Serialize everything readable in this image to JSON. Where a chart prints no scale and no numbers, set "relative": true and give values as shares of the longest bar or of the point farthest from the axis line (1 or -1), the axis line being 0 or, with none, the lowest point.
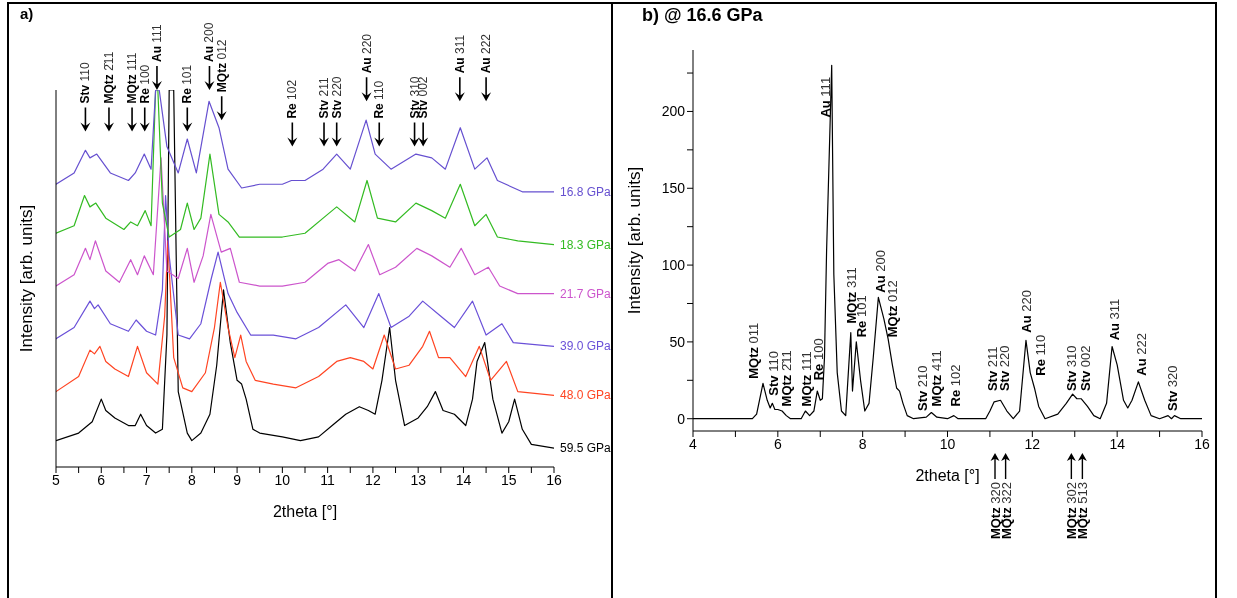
{
  "chart_data": [
    {
      "type": "line",
      "title": "a)",
      "xlabel": "2theta [°]",
      "ylabel": "Intensity [arb. units]",
      "relative": true,
      "xlim": [
        5,
        16
      ],
      "xticks": [
        5,
        {
          "value": 5.5,
          "label": null
        },
        6,
        {
          "value": 6.5,
          "label": null
        },
        7,
        {
          "value": 7.5,
          "label": null
        },
        8,
        {
          "value": 8.5,
          "label": null
        },
        9,
        {
          "value": 9.5,
          "label": null
        },
        10,
        {
          "value": 10.5,
          "label": null
        },
        11,
        {
          "value": 11.5,
          "label": null
        },
        12,
        {
          "value": 12.5,
          "label": null
        },
        13,
        {
          "value": 13.5,
          "label": null
        },
        14,
        {
          "value": 14.5,
          "label": null
        },
        15,
        {
          "value": 15.5,
          "label": null
        },
        16
      ],
      "series": [
        {
          "name": "16.8 GPa",
          "color": "#6650d0",
          "x": [
            5,
            5.4,
            5.65,
            5.75,
            5.9,
            6.2,
            6.6,
            6.75,
            6.95,
            7.1,
            7.2,
            7.28,
            7.45,
            7.7,
            7.9,
            8.1,
            8.38,
            8.6,
            8.8,
            9.1,
            9.5,
            10,
            10.2,
            10.5,
            10.9,
            11.2,
            11.5,
            11.85,
            12.05,
            12.4,
            12.95,
            13.3,
            13.6,
            13.93,
            14.25,
            14.52,
            14.75,
            15.3,
            16
          ],
          "values": [
            0.75,
            0.78,
            0.84,
            0.82,
            0.83,
            0.78,
            0.76,
            0.78,
            0.83,
            0.79,
            1,
            1,
            0.85,
            0.78,
            0.87,
            0.78,
            0.97,
            0.9,
            0.79,
            0.74,
            0.75,
            0.75,
            0.76,
            0.76,
            0.79,
            0.83,
            0.79,
            0.92,
            0.83,
            0.79,
            0.83,
            0.82,
            0.79,
            0.9,
            0.79,
            0.82,
            0.76,
            0.73,
            0.73
          ]
        },
        {
          "name": "18.3 GPa",
          "color": "#33bb22",
          "x": [
            5,
            5.4,
            5.63,
            5.75,
            5.88,
            6.1,
            6.5,
            6.65,
            6.8,
            6.97,
            7.1,
            7.2,
            7.25,
            7.35,
            7.5,
            7.75,
            7.9,
            8.05,
            8.2,
            8.4,
            8.6,
            8.8,
            9.05,
            9.5,
            10,
            10.5,
            11,
            11.2,
            11.6,
            11.87,
            12.1,
            12.5,
            12.95,
            13.3,
            13.6,
            13.93,
            14.25,
            14.5,
            14.75,
            15.2,
            16
          ],
          "values": [
            0.62,
            0.64,
            0.72,
            0.69,
            0.7,
            0.66,
            0.63,
            0.65,
            0.64,
            0.68,
            0.64,
            1,
            1,
            0.7,
            0.61,
            0.63,
            0.7,
            0.63,
            0.66,
            0.83,
            0.67,
            0.65,
            0.61,
            0.61,
            0.61,
            0.62,
            0.67,
            0.69,
            0.65,
            0.76,
            0.66,
            0.65,
            0.7,
            0.68,
            0.66,
            0.75,
            0.64,
            0.67,
            0.61,
            0.6,
            0.59
          ]
        },
        {
          "name": "21.7 GPa",
          "color": "#cc55cc",
          "x": [
            5,
            5.4,
            5.65,
            5.75,
            5.87,
            6.1,
            6.4,
            6.65,
            6.8,
            6.95,
            7.15,
            7.32,
            7.45,
            7.7,
            7.9,
            8.05,
            8.25,
            8.42,
            8.65,
            8.85,
            9.05,
            9.5,
            10,
            10.5,
            11,
            11.25,
            11.6,
            11.9,
            12.15,
            12.5,
            12.97,
            13.3,
            13.7,
            13.95,
            14.25,
            14.55,
            14.8,
            15.2,
            16
          ],
          "values": [
            0.48,
            0.51,
            0.58,
            0.55,
            0.6,
            0.52,
            0.49,
            0.55,
            0.51,
            0.56,
            0.51,
            0.82,
            0.52,
            0.5,
            0.58,
            0.49,
            0.56,
            0.67,
            0.57,
            0.58,
            0.49,
            0.48,
            0.48,
            0.49,
            0.54,
            0.55,
            0.52,
            0.59,
            0.51,
            0.53,
            0.58,
            0.56,
            0.53,
            0.58,
            0.51,
            0.53,
            0.48,
            0.46,
            0.46
          ]
        },
        {
          "name": "39.0 GPa",
          "color": "#6a50d8",
          "x": [
            5,
            5.4,
            5.75,
            5.85,
            5.93,
            6.2,
            6.6,
            6.77,
            7,
            7.2,
            7.35,
            7.42,
            7.5,
            7.7,
            7.95,
            8.2,
            8.43,
            8.58,
            8.8,
            9,
            9.3,
            9.8,
            10.3,
            10.8,
            11.4,
            11.8,
            12.13,
            12.4,
            12.8,
            13.1,
            13.5,
            13.8,
            14.2,
            14.5,
            14.85,
            15.1,
            16
          ],
          "values": [
            0.34,
            0.37,
            0.44,
            0.42,
            0.43,
            0.38,
            0.36,
            0.39,
            0.36,
            0.35,
            0.47,
            0.72,
            0.56,
            0.35,
            0.34,
            0.38,
            0.5,
            0.57,
            0.46,
            0.41,
            0.35,
            0.35,
            0.34,
            0.37,
            0.43,
            0.37,
            0.46,
            0.37,
            0.4,
            0.44,
            0.4,
            0.37,
            0.44,
            0.35,
            0.38,
            0.33,
            0.32
          ]
        },
        {
          "name": "48.0 GPa",
          "color": "#ff4422",
          "x": [
            5,
            5.5,
            5.75,
            5.85,
            5.97,
            6.1,
            6.3,
            6.6,
            6.8,
            7,
            7.25,
            7.4,
            7.47,
            7.6,
            7.8,
            8,
            8.3,
            8.5,
            8.63,
            8.8,
            8.95,
            9.08,
            9.2,
            9.4,
            9.8,
            10.3,
            10.8,
            11.2,
            11.5,
            11.8,
            12,
            12.25,
            12.5,
            12.8,
            13.1,
            13.25,
            13.45,
            13.7,
            14.05,
            14.35,
            14.6,
            14.95,
            15.2,
            16
          ],
          "values": [
            0.2,
            0.24,
            0.31,
            0.3,
            0.32,
            0.28,
            0.26,
            0.24,
            0.32,
            0.25,
            0.22,
            0.4,
            0.6,
            0.29,
            0.21,
            0.2,
            0.25,
            0.37,
            0.49,
            0.37,
            0.29,
            0.35,
            0.28,
            0.23,
            0.22,
            0.21,
            0.24,
            0.28,
            0.29,
            0.28,
            0.26,
            0.35,
            0.26,
            0.27,
            0.32,
            0.36,
            0.29,
            0.29,
            0.24,
            0.32,
            0.23,
            0.28,
            0.2,
            0.19
          ]
        },
        {
          "name": "59.5 GPa",
          "color": "#000000",
          "x": [
            5,
            5.5,
            5.8,
            6,
            6.1,
            6.3,
            6.6,
            6.75,
            6.87,
            7,
            7.2,
            7.35,
            7.45,
            7.5,
            7.6,
            7.7,
            7.9,
            8,
            8.2,
            8.4,
            8.55,
            8.7,
            8.85,
            9,
            9.1,
            9.2,
            9.35,
            9.5,
            10,
            10.4,
            10.8,
            11.1,
            11.4,
            11.7,
            11.9,
            12.05,
            12.2,
            12.37,
            12.5,
            12.7,
            13,
            13.2,
            13.38,
            13.55,
            13.8,
            14.05,
            14.2,
            14.3,
            14.47,
            14.65,
            14.85,
            15,
            15.13,
            15.3,
            15.5,
            16
          ],
          "values": [
            0.07,
            0.09,
            0.12,
            0.18,
            0.15,
            0.13,
            0.11,
            0.11,
            0.14,
            0.11,
            0.09,
            0.1,
            0.35,
            1,
            1,
            0.2,
            0.09,
            0.07,
            0.09,
            0.14,
            0.27,
            0.47,
            0.33,
            0.23,
            0.22,
            0.18,
            0.1,
            0.09,
            0.08,
            0.07,
            0.08,
            0.11,
            0.14,
            0.16,
            0.15,
            0.14,
            0.23,
            0.37,
            0.23,
            0.11,
            0.13,
            0.16,
            0.2,
            0.15,
            0.14,
            0.11,
            0.18,
            0.28,
            0.33,
            0.18,
            0.09,
            0.12,
            0.18,
            0.1,
            0.06,
            0.05
          ]
        }
      ],
      "annotations": [
        "Stv 110",
        "MQtz 2̄11",
        "MQtz 111",
        "Re 100",
        "Au 111",
        "Re 101",
        "Au 200",
        "MQtz 012",
        "Re 102",
        "Stv 211",
        "Stv 220",
        "Au 220",
        "Re 110",
        "Stv 310",
        "Stv 002",
        "Au 311",
        "Au 222"
      ]
    },
    {
      "type": "line",
      "title": "b) @ 16.6 GPa",
      "xlabel": "2theta [°]",
      "ylabel": "Intensity [arb. units]",
      "xlim": [
        4,
        16
      ],
      "ylim": [
        -8,
        240
      ],
      "xticks": [
        4,
        {
          "value": 5,
          "label": null
        },
        6,
        {
          "value": 7,
          "label": null
        },
        8,
        {
          "value": 9,
          "label": null
        },
        10,
        {
          "value": 11,
          "label": null
        },
        12,
        {
          "value": 13,
          "label": null
        },
        14,
        {
          "value": 15,
          "label": null
        },
        16
      ],
      "yticks": [
        0,
        {
          "value": 25,
          "label": null
        },
        50,
        {
          "value": 75,
          "label": null
        },
        100,
        {
          "value": 125,
          "label": null
        },
        150,
        {
          "value": 175,
          "label": null
        },
        200,
        {
          "value": 225,
          "label": null
        }
      ],
      "series": [
        {
          "color": "#000000",
          "x": [
            4,
            5.4,
            5.5,
            5.65,
            5.75,
            5.82,
            5.87,
            5.93,
            6,
            6.1,
            6.2,
            6.3,
            6.55,
            6.65,
            6.75,
            6.85,
            6.93,
            7,
            7.05,
            7.1,
            7.15,
            7.27,
            7.32,
            7.4,
            7.5,
            7.6,
            7.72,
            7.76,
            7.85,
            7.95,
            8.05,
            8.15,
            8.25,
            8.37,
            8.5,
            8.6,
            8.7,
            8.8,
            8.87,
            8.95,
            9.05,
            9.2,
            9.5,
            9.62,
            9.75,
            10,
            10.15,
            10.25,
            10.9,
            11,
            11.1,
            11.25,
            11.4,
            11.55,
            11.7,
            11.85,
            11.95,
            12.05,
            12.15,
            12.3,
            12.6,
            12.8,
            12.95,
            13.05,
            13.15,
            13.3,
            13.45,
            13.6,
            13.75,
            13.88,
            14,
            14.15,
            14.25,
            14.35,
            14.5,
            14.65,
            14.8,
            15,
            15.2,
            15.28,
            15.35,
            15.5,
            16
          ],
          "values": [
            0,
            0,
            3,
            23,
            12,
            7,
            10,
            6,
            6,
            5,
            2,
            0,
            0,
            5,
            2,
            5,
            18,
            12,
            13,
            40,
            110,
            230,
            94,
            30,
            5,
            2,
            56,
            18,
            50,
            25,
            5,
            10,
            40,
            79,
            65,
            52,
            35,
            20,
            18,
            10,
            2,
            0,
            1,
            4,
            1,
            0,
            2,
            0,
            0,
            5,
            11,
            12,
            5,
            0,
            5,
            51,
            30,
            20,
            8,
            0,
            3,
            10,
            16,
            13,
            13,
            8,
            2,
            0,
            10,
            47,
            35,
            12,
            7,
            12,
            24,
            12,
            2,
            0,
            2,
            0,
            2,
            0,
            0
          ]
        }
      ],
      "annotations": [
        "MQtz 011",
        "Stv 110",
        "MQtz 2̄11",
        "MQtz 111",
        "Re 100",
        "Au 111",
        "MQtz 311",
        "Re 101",
        "Au 200",
        "MQtz 012",
        "Stv 210",
        "MQtz 411",
        "Re 102",
        "Stv 211",
        "Stv 220",
        "Au 220",
        "Re 110",
        "Stv 310",
        "Stv 002",
        "Au 311",
        "Au 222",
        "Stv 320",
        "MQtz 320",
        "MQtz 322",
        "MQtz 302",
        "MQtz 513"
      ]
    }
  ]
}
